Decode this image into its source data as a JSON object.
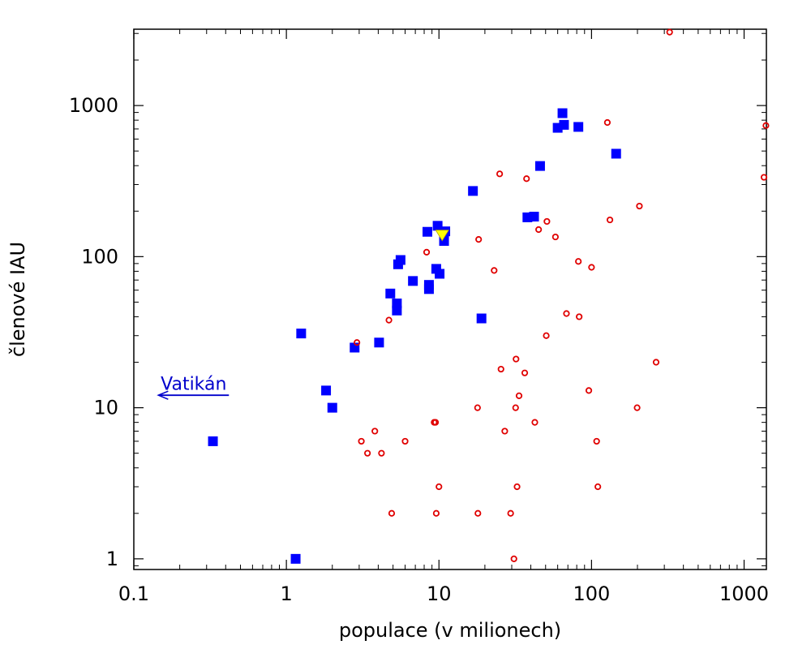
{
  "chart_data": {
    "type": "scatter",
    "title": "",
    "xlabel": "populace (v milionech)",
    "ylabel": "členové IAU",
    "x_scale": "log",
    "y_scale": "log",
    "xlim": [
      0.1,
      1400
    ],
    "ylim": [
      0.85,
      3200
    ],
    "x_ticks": [
      {
        "value": 0.1,
        "label": "0.1"
      },
      {
        "value": 1,
        "label": "1"
      },
      {
        "value": 10,
        "label": "10"
      },
      {
        "value": 100,
        "label": "100"
      },
      {
        "value": 1000,
        "label": "1000"
      }
    ],
    "y_ticks": [
      {
        "value": 1,
        "label": "1"
      },
      {
        "value": 10,
        "label": "10"
      },
      {
        "value": 100,
        "label": "100"
      },
      {
        "value": 1000,
        "label": "1000"
      }
    ],
    "grid": false,
    "legend": "none",
    "series": [
      {
        "marker": "square",
        "color": "#0000ff",
        "points": [
          [
            0.33,
            6
          ],
          [
            1.15,
            1
          ],
          [
            1.25,
            31
          ],
          [
            1.82,
            13
          ],
          [
            2.0,
            10
          ],
          [
            2.8,
            25
          ],
          [
            4.05,
            27
          ],
          [
            4.8,
            57
          ],
          [
            5.3,
            44
          ],
          [
            5.3,
            49
          ],
          [
            5.4,
            89
          ],
          [
            5.6,
            95
          ],
          [
            6.75,
            69
          ],
          [
            8.4,
            146
          ],
          [
            8.6,
            61
          ],
          [
            8.6,
            65
          ],
          [
            9.6,
            83
          ],
          [
            9.8,
            160
          ],
          [
            10.1,
            77
          ],
          [
            10.8,
            127
          ],
          [
            11.0,
            147
          ],
          [
            16.7,
            272
          ],
          [
            19.0,
            39
          ],
          [
            38.0,
            182
          ],
          [
            42.0,
            184
          ],
          [
            46.0,
            398
          ],
          [
            60.0,
            712
          ],
          [
            64.5,
            890
          ],
          [
            66.0,
            745
          ],
          [
            82.0,
            722
          ],
          [
            145.0,
            480
          ]
        ]
      },
      {
        "marker": "circle",
        "color": "#e00000",
        "points": [
          [
            2.9,
            27
          ],
          [
            3.1,
            6
          ],
          [
            3.4,
            5
          ],
          [
            3.8,
            7
          ],
          [
            4.2,
            5
          ],
          [
            4.7,
            38
          ],
          [
            4.9,
            2
          ],
          [
            6.0,
            6
          ],
          [
            8.3,
            107
          ],
          [
            9.3,
            8
          ],
          [
            9.5,
            8
          ],
          [
            9.6,
            2
          ],
          [
            10.0,
            3
          ],
          [
            17.9,
            10
          ],
          [
            18.0,
            2
          ],
          [
            18.2,
            130
          ],
          [
            23.0,
            81
          ],
          [
            25.0,
            353
          ],
          [
            25.5,
            18
          ],
          [
            27.0,
            7
          ],
          [
            29.5,
            2
          ],
          [
            31.0,
            1
          ],
          [
            31.8,
            10
          ],
          [
            32.0,
            21
          ],
          [
            32.5,
            3
          ],
          [
            33.5,
            12
          ],
          [
            36.5,
            17
          ],
          [
            37.5,
            328
          ],
          [
            42.5,
            8
          ],
          [
            45.0,
            151
          ],
          [
            51.0,
            171
          ],
          [
            50.5,
            30
          ],
          [
            58.0,
            135
          ],
          [
            68.5,
            42
          ],
          [
            82.0,
            93
          ],
          [
            83.0,
            40
          ],
          [
            96.0,
            13
          ],
          [
            100.0,
            85
          ],
          [
            108.0,
            6
          ],
          [
            110.0,
            3
          ],
          [
            127.0,
            772
          ],
          [
            132.0,
            175
          ],
          [
            199.0,
            10
          ],
          [
            206.0,
            216
          ],
          [
            265.0,
            20
          ],
          [
            325.0,
            3060
          ],
          [
            1350.0,
            335
          ],
          [
            1390.0,
            737
          ]
        ]
      },
      {
        "marker": "triangle-down",
        "color": "#ffff00",
        "points": [
          [
            10.5,
            139
          ]
        ]
      }
    ],
    "annotations": [
      {
        "text": "Vatikán",
        "arrow": "left",
        "color": "#0000cc",
        "x_from": 0.42,
        "x_to": 0.145,
        "y": 12.1,
        "text_x": 0.15,
        "text_y": 14.5
      }
    ]
  }
}
